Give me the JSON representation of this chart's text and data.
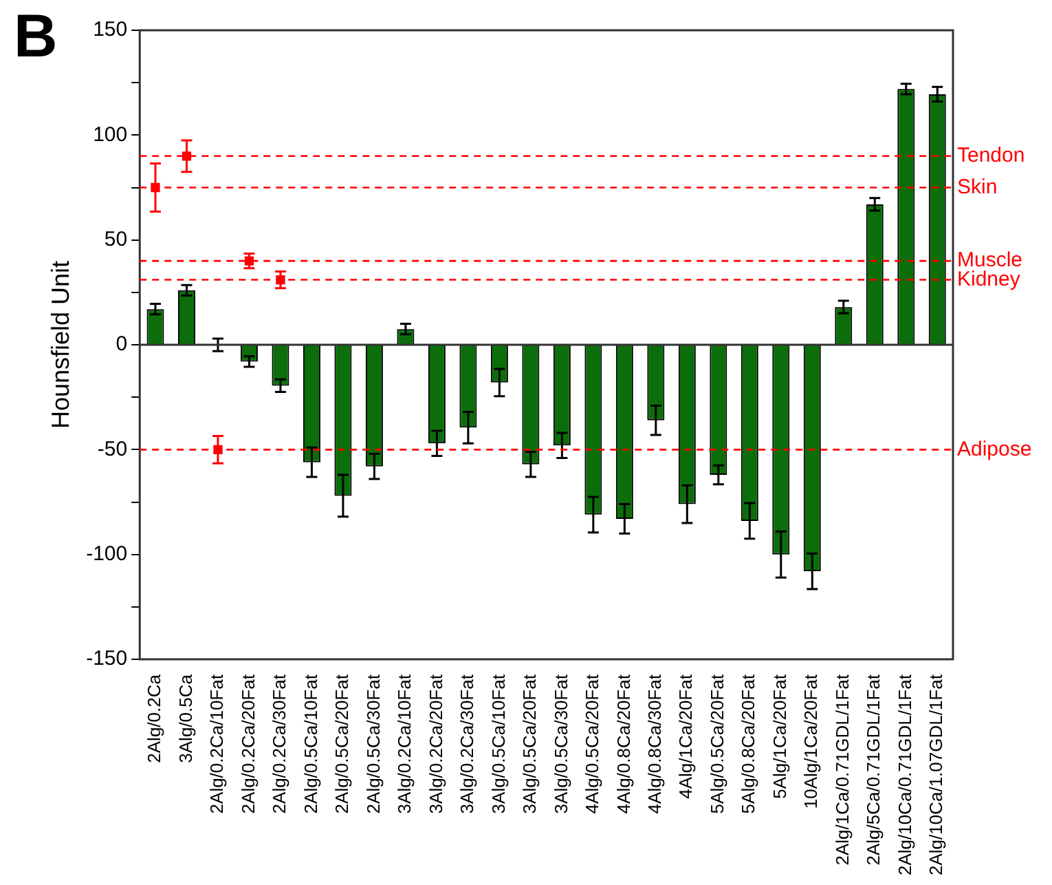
{
  "chart_data": {
    "type": "bar",
    "title": "B",
    "ylabel": "Hounsfield Unit",
    "categories": [
      "2Alg/0.2Ca",
      "3Alg/0.5Ca",
      "2Alg/0.2Ca/10Fat",
      "2Alg/0.2Ca/20Fat",
      "2Alg/0.2Ca/30Fat",
      "2Alg/0.5Ca/10Fat",
      "2Alg/0.5Ca/20Fat",
      "2Alg/0.5Ca/30Fat",
      "3Alg/0.2Ca/10Fat",
      "3Alg/0.2Ca/20Fat",
      "3Alg/0.2Ca/30Fat",
      "3Alg/0.5Ca/10Fat",
      "3Alg/0.5Ca/20Fat",
      "3Alg/0.5Ca/30Fat",
      "4Alg/0.5Ca/20Fat",
      "4Alg/0.8Ca/20Fat",
      "4Alg/0.8Ca/30Fat",
      "4Alg/1Ca/20Fat",
      "5Alg/0.5Ca/20Fat",
      "5Alg/0.8Ca/20Fat",
      "5Alg/1Ca/20Fat",
      "10Alg/1Ca/20Fat",
      "2Alg/1Ca/0.71GDL/1Fat",
      "2Alg/5Ca/0.71GDL/1Fat",
      "2Alg/10Ca/0.71GDL/1Fat",
      "2Alg/10Ca/1.07GDL/1Fat"
    ],
    "series": [
      {
        "color": "#0b6e0b",
        "values": [
          17,
          26,
          0,
          -8,
          -19.5,
          -56,
          -72,
          -58,
          7.5,
          -47,
          -39.5,
          -18,
          -57,
          -48,
          -81,
          -83,
          -36,
          -76,
          -62,
          -84,
          -100,
          -108,
          18,
          67,
          122,
          119.5
        ],
        "errors": [
          2.5,
          2.5,
          3,
          2.5,
          3,
          7,
          10,
          6,
          2.5,
          6,
          7.5,
          6.5,
          6,
          6,
          8.5,
          7,
          7,
          9,
          4.5,
          8.5,
          11,
          8.5,
          3,
          3,
          2.5,
          3.5
        ]
      },
      {
        "type": "scatter",
        "color": "#ff0000",
        "marker": "square",
        "x": [
          "2Alg/0.2Ca",
          "3Alg/0.5Ca",
          "2Alg/0.2Ca/10Fat",
          "2Alg/0.2Ca/20Fat",
          "2Alg/0.2Ca/30Fat"
        ],
        "values": [
          75,
          90,
          -50,
          40,
          31
        ],
        "errors": [
          11.5,
          7.5,
          6.5,
          3.5,
          4
        ]
      }
    ],
    "ylim": [
      -150,
      150
    ],
    "yticks": [
      -150,
      {
        "value": -125,
        "label": null
      },
      -100,
      {
        "value": -75,
        "label": null
      },
      -50,
      {
        "value": -25,
        "label": null
      },
      0,
      {
        "value": 25,
        "label": null
      },
      50,
      {
        "value": 75,
        "label": null
      },
      100,
      {
        "value": 125,
        "label": null
      },
      150
    ],
    "ref_lines": [
      {
        "axis": "y",
        "value": 90,
        "label": "Tendon",
        "color": "#ff0000",
        "line_style": "dashed"
      },
      {
        "axis": "y",
        "value": 75,
        "label": "Skin",
        "color": "#ff0000",
        "line_style": "dashed"
      },
      {
        "axis": "y",
        "value": 40,
        "label": "Muscle",
        "color": "#ff0000",
        "line_style": "dashed"
      },
      {
        "axis": "y",
        "value": 31,
        "label": "Kidney",
        "color": "#ff0000",
        "line_style": "dashed"
      },
      {
        "axis": "y",
        "value": -50,
        "label": "Adipose",
        "color": "#ff0000",
        "line_style": "dashed"
      }
    ]
  }
}
